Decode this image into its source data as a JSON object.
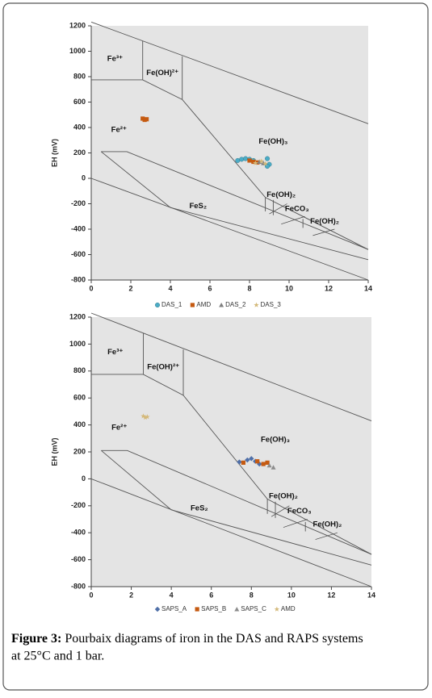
{
  "chart_data": [
    {
      "type": "scatter",
      "ylabel": "EH (mV)",
      "xlim": [
        0,
        14
      ],
      "ylim": [
        -800,
        1200
      ],
      "xticks": [
        0,
        2,
        4,
        6,
        8,
        10,
        12,
        14
      ],
      "yticks": [
        -800,
        -600,
        -400,
        -200,
        0,
        200,
        400,
        600,
        800,
        1000,
        1200
      ],
      "regions": [
        "Fe³⁺",
        "Fe(OH)²⁺",
        "Fe²⁺",
        "Fe(OH)₃",
        "Fe(OH)₂",
        "FeCO₃",
        "Fe(OH)₂",
        "FeS₂"
      ],
      "boundaries": [
        {
          "x": [
            0,
            14
          ],
          "y": [
            1230,
            430
          ]
        },
        {
          "x": [
            2.6,
            2.6
          ],
          "y": [
            1080,
            775
          ]
        },
        {
          "x": [
            0,
            2.6,
            4.6,
            8.8,
            14
          ],
          "y": [
            775,
            775,
            620,
            -150,
            -560
          ]
        },
        {
          "x": [
            4.6,
            4.6
          ],
          "y": [
            960,
            620
          ]
        },
        {
          "x": [
            0.5,
            1.8,
            14
          ],
          "y": [
            210,
            210,
            -560
          ]
        },
        {
          "x": [
            0.5,
            4,
            14
          ],
          "y": [
            210,
            -230,
            -640
          ]
        },
        {
          "x": [
            0,
            14
          ],
          "y": [
            0,
            -800
          ]
        },
        {
          "x": [
            8.8,
            8.8
          ],
          "y": [
            -150,
            -260
          ]
        },
        {
          "x": [
            9.2,
            9.2
          ],
          "y": [
            -170,
            -290
          ]
        },
        {
          "x": [
            10.7,
            10.7
          ],
          "y": [
            -320,
            -390
          ]
        }
      ],
      "series": [
        {
          "name": "DAS_1",
          "color": "#4bacc6",
          "marker": "circle",
          "x": [
            7.4,
            7.6,
            7.8,
            8.0,
            8.2,
            8.9,
            9.0,
            8.9
          ],
          "y": [
            140,
            150,
            155,
            150,
            140,
            155,
            110,
            95
          ]
        },
        {
          "name": "AMD",
          "color": "#c55a11",
          "marker": "square",
          "x": [
            2.6,
            2.7,
            2.8,
            8.0,
            8.2,
            8.4
          ],
          "y": [
            470,
            460,
            465,
            140,
            130,
            125
          ]
        },
        {
          "name": "DAS_2",
          "color": "#7f7f7f",
          "marker": "triangle",
          "x": [
            8.5,
            8.7
          ],
          "y": [
            130,
            120
          ]
        },
        {
          "name": "DAS_3",
          "color": "#d4b97a",
          "marker": "star",
          "x": [
            8.3,
            8.6,
            8.8
          ],
          "y": [
            120,
            135,
            115
          ]
        }
      ]
    },
    {
      "type": "scatter",
      "ylabel": "EH (mV)",
      "xlim": [
        0,
        14
      ],
      "ylim": [
        -800,
        1200
      ],
      "xticks": [
        0,
        2,
        4,
        6,
        8,
        10,
        12,
        14
      ],
      "yticks": [
        -800,
        -600,
        -400,
        -200,
        0,
        200,
        400,
        600,
        800,
        1000,
        1200
      ],
      "regions": [
        "Fe³⁺",
        "Fe(OH)²⁺",
        "Fe²⁺",
        "Fe(OH)₃",
        "Fe(OH)₂",
        "FeCO₃",
        "Fe(OH)₂",
        "FeS₂"
      ],
      "boundaries": [
        {
          "x": [
            0,
            14
          ],
          "y": [
            1230,
            430
          ]
        },
        {
          "x": [
            2.6,
            2.6
          ],
          "y": [
            1080,
            775
          ]
        },
        {
          "x": [
            0,
            2.6,
            4.6,
            8.8,
            14
          ],
          "y": [
            775,
            775,
            620,
            -150,
            -560
          ]
        },
        {
          "x": [
            4.6,
            4.6
          ],
          "y": [
            960,
            620
          ]
        },
        {
          "x": [
            0.5,
            1.8,
            14
          ],
          "y": [
            210,
            210,
            -560
          ]
        },
        {
          "x": [
            0.5,
            4,
            14
          ],
          "y": [
            210,
            -230,
            -640
          ]
        },
        {
          "x": [
            0,
            14
          ],
          "y": [
            0,
            -800
          ]
        },
        {
          "x": [
            8.8,
            8.8
          ],
          "y": [
            -150,
            -260
          ]
        },
        {
          "x": [
            9.2,
            9.2
          ],
          "y": [
            -170,
            -290
          ]
        },
        {
          "x": [
            10.7,
            10.7
          ],
          "y": [
            -320,
            -390
          ]
        }
      ],
      "series": [
        {
          "name": "SAPS_A",
          "color": "#4f6fa8",
          "marker": "diamond",
          "x": [
            7.4,
            7.8,
            8.0,
            8.2,
            8.4
          ],
          "y": [
            125,
            140,
            150,
            130,
            110
          ]
        },
        {
          "name": "SAPS_B",
          "color": "#c55a11",
          "marker": "square",
          "x": [
            7.6,
            8.3,
            8.6,
            8.8
          ],
          "y": [
            120,
            130,
            110,
            120
          ]
        },
        {
          "name": "SAPS_C",
          "color": "#8c8c8c",
          "marker": "triangle",
          "x": [
            8.9,
            9.1
          ],
          "y": [
            100,
            85
          ]
        },
        {
          "name": "AMD",
          "color": "#d4b97a",
          "marker": "star",
          "x": [
            2.6,
            2.7,
            2.8
          ],
          "y": [
            465,
            455,
            460
          ]
        }
      ]
    }
  ],
  "caption": {
    "label": "Figure 3:",
    "text": " Pourbaix diagrams of iron in the DAS and RAPS systems",
    "text2": "at 25°C and 1 bar."
  }
}
